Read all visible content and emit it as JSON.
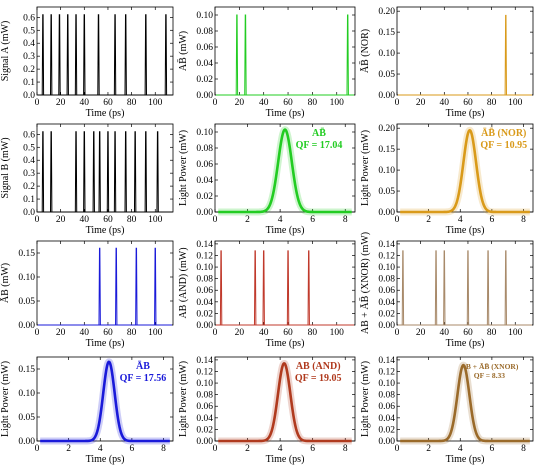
{
  "chart_data": [
    {
      "id": "sigA",
      "type": "line",
      "row": 0,
      "col": 0,
      "kind": "pulses",
      "color": "#000000",
      "xlabel": "Time (ps)",
      "ylabel": "Signal A (mW)",
      "xlim": [
        0,
        115
      ],
      "ylim": [
        0,
        0.68
      ],
      "xticks": [
        "0",
        "20",
        "40",
        "60",
        "80",
        "100"
      ],
      "yticks": [
        "0.0",
        "0.1",
        "0.2",
        "0.3",
        "0.4",
        "0.5",
        "0.6"
      ],
      "pulse_width": 0.9,
      "pulses": [
        [
          5,
          0.62
        ],
        [
          12,
          0.62
        ],
        [
          19,
          0.62
        ],
        [
          26,
          0.62
        ],
        [
          33,
          0.62
        ],
        [
          40,
          0.62
        ],
        [
          52,
          0.62
        ],
        [
          66,
          0.62
        ],
        [
          75,
          0.62
        ],
        [
          92,
          0.62
        ],
        [
          109,
          0.62
        ]
      ]
    },
    {
      "id": "aNotB",
      "type": "line",
      "row": 0,
      "col": 1,
      "kind": "pulses",
      "color": "#22cc22",
      "xlabel": "Time (ps)",
      "ylabel": "AB̄ (mW)",
      "xlim": [
        0,
        115
      ],
      "ylim": [
        0,
        0.11
      ],
      "xticks": [
        "0",
        "20",
        "40",
        "60",
        "80",
        "100"
      ],
      "yticks": [
        "0.00",
        "0.02",
        "0.04",
        "0.06",
        "0.08",
        "0.10"
      ],
      "pulse_width": 0.9,
      "pulses": [
        [
          18,
          0.1
        ],
        [
          25,
          0.1
        ],
        [
          109,
          0.1
        ]
      ]
    },
    {
      "id": "notAnotB",
      "type": "line",
      "row": 0,
      "col": 2,
      "kind": "pulses",
      "color": "#d99a1a",
      "xlabel": "Time (ps)",
      "ylabel": "ĀB̄ (NOR)",
      "xlim": [
        0,
        115
      ],
      "ylim": [
        0,
        0.21
      ],
      "xticks": [
        "0",
        "20",
        "40",
        "60",
        "80",
        "100"
      ],
      "yticks": [
        "0.00",
        "0.05",
        "0.10",
        "0.15",
        "0.20"
      ],
      "pulse_width": 0.9,
      "pulses": [
        [
          92,
          0.19
        ]
      ]
    },
    {
      "id": "sigB",
      "type": "line",
      "row": 1,
      "col": 0,
      "kind": "pulses",
      "color": "#000000",
      "xlabel": "Time (ps)",
      "ylabel": "Signal B (mW)",
      "xlim": [
        0,
        115
      ],
      "ylim": [
        0,
        0.68
      ],
      "xticks": [
        "0",
        "20",
        "40",
        "60",
        "80",
        "100"
      ],
      "yticks": [
        "0.0",
        "0.1",
        "0.2",
        "0.3",
        "0.4",
        "0.5",
        "0.6"
      ],
      "pulse_width": 0.9,
      "pulses": [
        [
          5,
          0.62
        ],
        [
          12,
          0.62
        ],
        [
          33,
          0.62
        ],
        [
          40,
          0.62
        ],
        [
          48,
          0.62
        ],
        [
          53,
          0.62
        ],
        [
          60,
          0.62
        ],
        [
          66,
          0.62
        ],
        [
          75,
          0.62
        ],
        [
          83,
          0.62
        ],
        [
          92,
          0.62
        ],
        [
          102,
          0.62
        ]
      ]
    },
    {
      "id": "aNotBzoom",
      "type": "line",
      "row": 1,
      "col": 1,
      "kind": "gauss",
      "color": "#22cc22",
      "xlabel": "Time (ps)",
      "ylabel": "Light Power (mW)",
      "xlim": [
        0,
        8.6
      ],
      "ylim": [
        0,
        0.11
      ],
      "xticks": [
        "0",
        "2",
        "4",
        "6",
        "8"
      ],
      "yticks": [
        "0.00",
        "0.02",
        "0.04",
        "0.06",
        "0.08",
        "0.10"
      ],
      "center": 4.3,
      "sigma": 0.42,
      "peak": 0.103,
      "annotation": {
        "line1": "AB̄",
        "line2": "QF = 17.04",
        "color": "#22cc22"
      }
    },
    {
      "id": "notAnotBzoom",
      "type": "line",
      "row": 1,
      "col": 2,
      "kind": "gauss",
      "color": "#d99a1a",
      "xlabel": "Time (ps)",
      "ylabel": "Light Power (mW)",
      "xlim": [
        0,
        8.6
      ],
      "ylim": [
        0,
        0.21
      ],
      "xticks": [
        "0",
        "2",
        "4",
        "6",
        "8"
      ],
      "yticks": [
        "0.00",
        "0.05",
        "0.10",
        "0.15",
        "0.20"
      ],
      "center": 4.6,
      "sigma": 0.4,
      "peak": 0.195,
      "annotation": {
        "line1": "ĀB̄ (NOR)",
        "line2": "QF = 10.95",
        "color": "#d99a1a"
      }
    },
    {
      "id": "notAB",
      "type": "line",
      "row": 2,
      "col": 0,
      "kind": "pulses",
      "color": "#1a1ad9",
      "xlabel": "Time (ps)",
      "ylabel": "ĀB (mW)",
      "xlim": [
        0,
        115
      ],
      "ylim": [
        0,
        0.175
      ],
      "xticks": [
        "0",
        "20",
        "40",
        "60",
        "80",
        "100"
      ],
      "yticks": [
        "0.00",
        "0.05",
        "0.10",
        "0.15"
      ],
      "pulse_width": 0.9,
      "pulses": [
        [
          53,
          0.16
        ],
        [
          67,
          0.16
        ],
        [
          84,
          0.16
        ],
        [
          100,
          0.16
        ]
      ]
    },
    {
      "id": "AB",
      "type": "line",
      "row": 2,
      "col": 1,
      "kind": "pulses",
      "color": "#c0392b",
      "xlabel": "Time (ps)",
      "ylabel": "AB (AND) (mW)",
      "xlim": [
        0,
        115
      ],
      "ylim": [
        0,
        0.145
      ],
      "xticks": [
        "0",
        "20",
        "40",
        "60",
        "80",
        "100"
      ],
      "yticks": [
        "0.00",
        "0.02",
        "0.04",
        "0.06",
        "0.08",
        "0.10",
        "0.12",
        "0.14"
      ],
      "pulse_width": 0.9,
      "pulses": [
        [
          5,
          0.128
        ],
        [
          33,
          0.128
        ],
        [
          40,
          0.128
        ],
        [
          60,
          0.128
        ],
        [
          77,
          0.128
        ]
      ]
    },
    {
      "id": "xnor",
      "type": "line",
      "row": 2,
      "col": 2,
      "kind": "pulses",
      "color": "#a88a6a",
      "xlabel": "Time (ps)",
      "ylabel": "AB + ĀB̄ (XNOR) (mW)",
      "xlim": [
        0,
        115
      ],
      "ylim": [
        0,
        0.145
      ],
      "xticks": [
        "0",
        "20",
        "40",
        "60",
        "80",
        "100"
      ],
      "yticks": [
        "0.00",
        "0.02",
        "0.04",
        "0.06",
        "0.08",
        "0.10",
        "0.12",
        "0.14"
      ],
      "pulse_width": 0.9,
      "pulses": [
        [
          5,
          0.128
        ],
        [
          33,
          0.128
        ],
        [
          40,
          0.128
        ],
        [
          60,
          0.128
        ],
        [
          77,
          0.128
        ],
        [
          92,
          0.128
        ]
      ]
    },
    {
      "id": "notABzoom",
      "type": "line",
      "row": 3,
      "col": 0,
      "kind": "gauss",
      "color": "#1a1ad9",
      "xlabel": "Time (ps)",
      "ylabel": "Light Power (mW)",
      "xlim": [
        0,
        8.6
      ],
      "ylim": [
        0,
        0.175
      ],
      "xticks": [
        "0",
        "2",
        "4",
        "6",
        "8"
      ],
      "yticks": [
        "0.00",
        "0.05",
        "0.10",
        "0.15"
      ],
      "center": 4.55,
      "sigma": 0.36,
      "peak": 0.165,
      "annotation": {
        "line1": "ĀB",
        "line2": "QF = 17.56",
        "color": "#1a1ad9"
      }
    },
    {
      "id": "ABzoom",
      "type": "line",
      "row": 3,
      "col": 1,
      "kind": "gauss",
      "color": "#b03a1e",
      "xlabel": "Time (ps)",
      "ylabel": "Light Power (mW)",
      "xlim": [
        0,
        8.6
      ],
      "ylim": [
        0,
        0.145
      ],
      "xticks": [
        "0",
        "2",
        "4",
        "6",
        "8"
      ],
      "yticks": [
        "0.00",
        "0.02",
        "0.04",
        "0.06",
        "0.08",
        "0.10",
        "0.12",
        "0.14"
      ],
      "center": 4.25,
      "sigma": 0.38,
      "peak": 0.134,
      "annotation": {
        "line1": "AB (AND)",
        "line2": "QF = 19.05",
        "color": "#b03a1e"
      }
    },
    {
      "id": "xnorzoom",
      "type": "line",
      "row": 3,
      "col": 2,
      "kind": "gauss",
      "color": "#9a6a2a",
      "xlabel": "Time (ps)",
      "ylabel": "Light Power (mW)",
      "xlim": [
        0,
        8.6
      ],
      "ylim": [
        0,
        0.145
      ],
      "xticks": [
        "0",
        "2",
        "4",
        "6",
        "8"
      ],
      "yticks": [
        "0.00",
        "0.02",
        "0.04",
        "0.06",
        "0.08",
        "0.10",
        "0.12",
        "0.14"
      ],
      "center": 4.2,
      "sigma": 0.38,
      "peak": 0.131,
      "annotation": {
        "line1": "AB + ĀB̄ (XNOR)",
        "line2": "QF = 8.33",
        "color": "#9a6a2a",
        "small": true
      }
    }
  ]
}
